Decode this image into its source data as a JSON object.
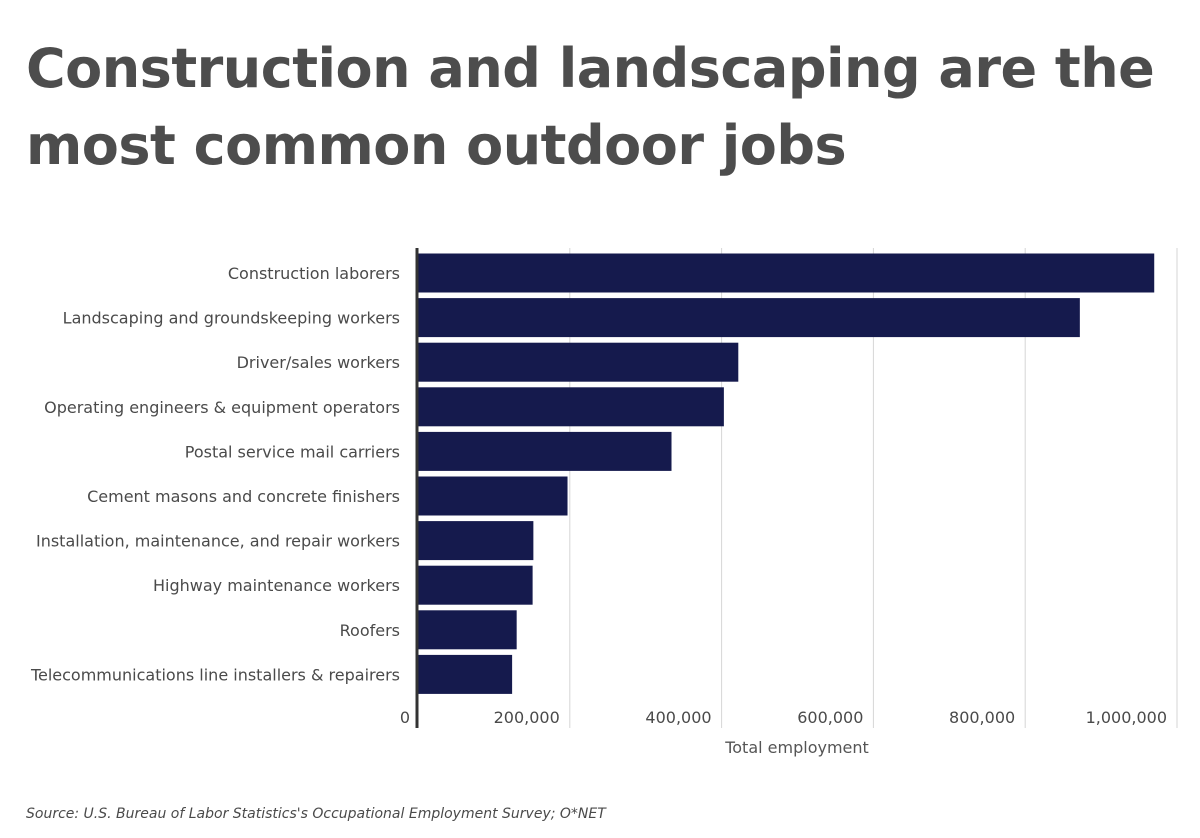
{
  "chart_data": {
    "type": "bar",
    "orientation": "horizontal",
    "title": "Construction and landscaping are the most common outdoor jobs",
    "categories": [
      "Construction laborers",
      "Landscaping and groundskeeping workers",
      "Driver/sales workers",
      "Operating engineers & equipment operators",
      "Postal service mail carriers",
      "Cement masons and concrete finishers",
      "Installation, maintenance, and repair workers",
      "Highway maintenance workers",
      "Roofers",
      "Telecommunications line installers & repairers"
    ],
    "values": [
      970000,
      872000,
      422000,
      403000,
      334000,
      197000,
      152000,
      151000,
      130000,
      124000
    ],
    "xlabel": "Total employment",
    "ylabel": "",
    "xlim": [
      0,
      1000000
    ],
    "xticks": [
      0,
      200000,
      400000,
      600000,
      800000,
      1000000
    ],
    "xtick_labels": [
      "0",
      "200,000",
      "400,000",
      "600,000",
      "800,000",
      "1,000,000"
    ],
    "grid": true,
    "legend": "none",
    "bar_color": "#151a4d"
  },
  "source": "Source:  U.S. Bureau of Labor Statistics's Occupational Employment Survey; O*NET"
}
